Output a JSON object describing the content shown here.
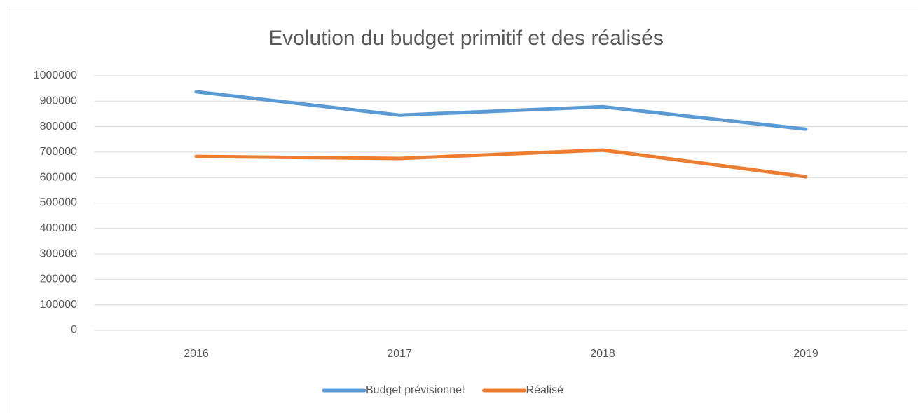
{
  "chart_data": {
    "type": "line",
    "title": "Evolution du budget primitif et des réalisés",
    "categories": [
      "2016",
      "2017",
      "2018",
      "2019"
    ],
    "series": [
      {
        "name": "Budget prévisionnel",
        "color": "#5b9bd5",
        "values": [
          937000,
          845000,
          878000,
          790000
        ]
      },
      {
        "name": "Réalisé",
        "color": "#ed7d31",
        "values": [
          683000,
          675000,
          708000,
          603000
        ]
      }
    ],
    "ylim": [
      0,
      1000000
    ],
    "yticks": [
      0,
      100000,
      200000,
      300000,
      400000,
      500000,
      600000,
      700000,
      800000,
      900000,
      1000000
    ],
    "grid": true,
    "legend": "bottom"
  }
}
